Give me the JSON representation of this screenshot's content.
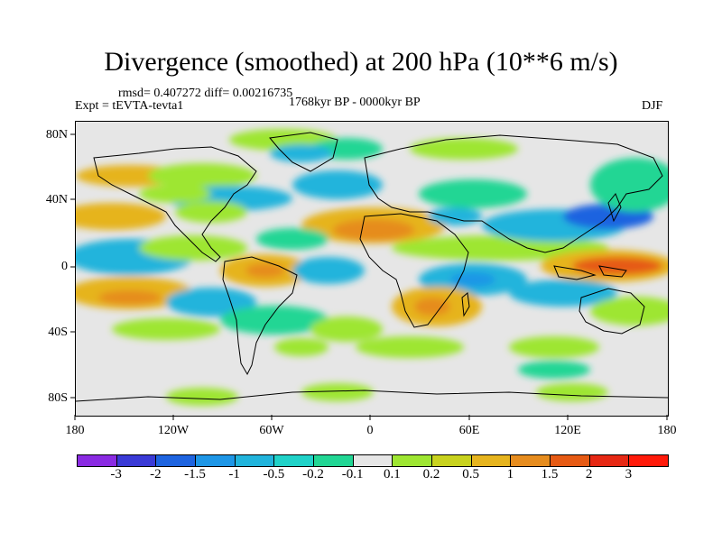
{
  "title": "Divergence (smoothed) at 200 hPa (10**6 m/s)",
  "stats": "rmsd= 0.407272 diff= 0.00216735",
  "experiment": "Expt = tEVTA-tevta1",
  "period": "1768kyr BP - 0000kyr BP",
  "season": "DJF",
  "lat_labels": [
    "80N",
    "40N",
    "0",
    "40S",
    "80S"
  ],
  "lon_labels": [
    "180",
    "120W",
    "60W",
    "0",
    "60E",
    "120E",
    "180"
  ],
  "colorbar": {
    "labels": [
      "-3",
      "-2",
      "-1.5",
      "-1",
      "-0.5",
      "-0.2",
      "-0.1",
      "0.1",
      "0.2",
      "0.5",
      "1",
      "1.5",
      "2",
      "3"
    ],
    "colors": [
      "#8a2be2",
      "#3a3ad6",
      "#1e64e0",
      "#1e96e6",
      "#21b4dc",
      "#20d2c8",
      "#21d694",
      "#e6e6e6",
      "#9ee632",
      "#c8d21e",
      "#e6b41e",
      "#e68c1e",
      "#e65a14",
      "#e62814",
      "#ff1a0a"
    ]
  }
}
